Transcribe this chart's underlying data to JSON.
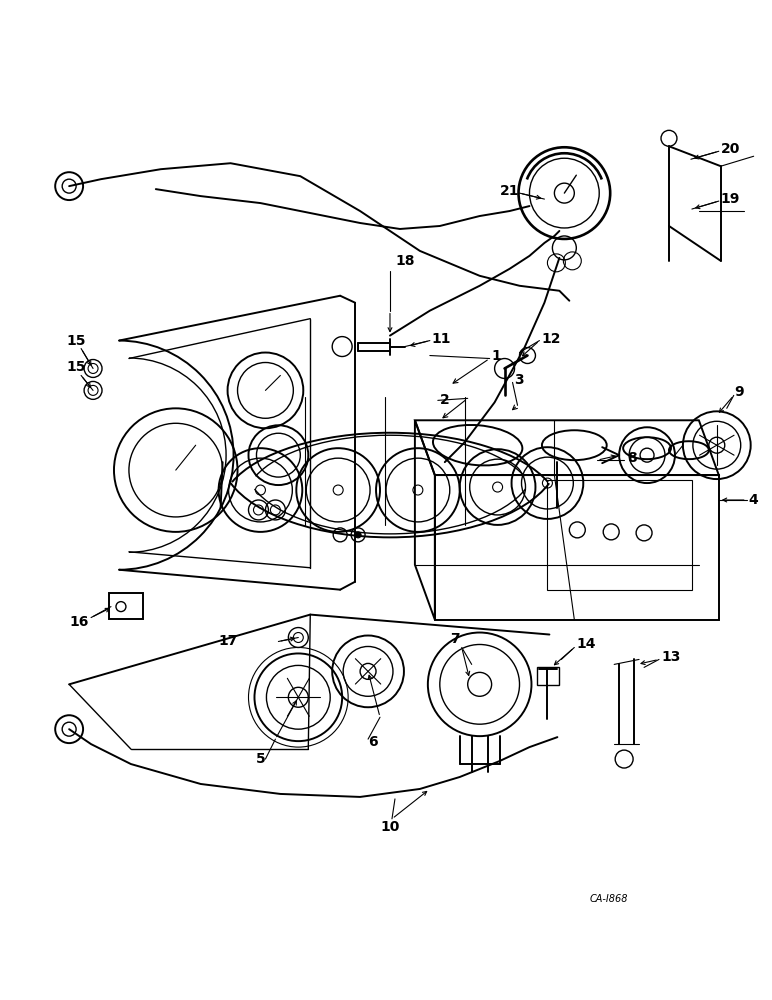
{
  "bg_color": "#ffffff",
  "line_color": "#000000",
  "fig_width": 7.72,
  "fig_height": 10.0,
  "dpi": 100,
  "watermark": "CA-I868",
  "label_fontsize": 10,
  "label_bold": true
}
